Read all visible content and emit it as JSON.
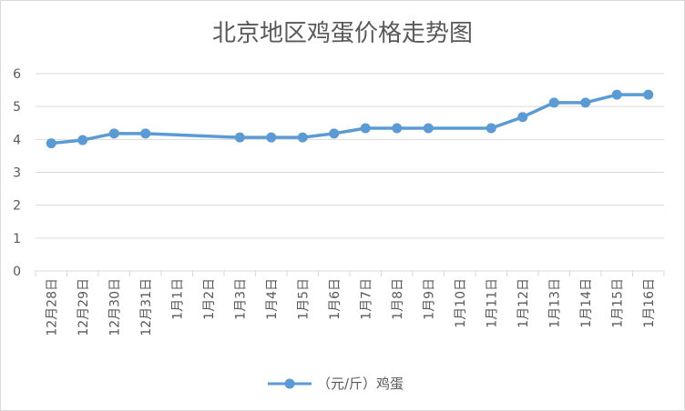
{
  "chart_data": {
    "type": "line",
    "title": "北京地区鸡蛋价格走势图",
    "categories": [
      "12月28日",
      "12月29日",
      "12月30日",
      "12月31日",
      "1月1日",
      "1月2日",
      "1月3日",
      "1月4日",
      "1月5日",
      "1月6日",
      "1月7日",
      "1月8日",
      "1月9日",
      "1月10日",
      "1月11日",
      "1月12日",
      "1月13日",
      "1月14日",
      "1月15日",
      "1月16日"
    ],
    "series": [
      {
        "name": "（元/斤）鸡蛋",
        "color": "#5b9bd5",
        "values": [
          3.88,
          3.98,
          4.18,
          4.18,
          null,
          null,
          4.06,
          4.06,
          4.06,
          4.18,
          4.34,
          4.34,
          4.34,
          null,
          4.34,
          4.68,
          5.12,
          5.12,
          5.36,
          5.36
        ]
      }
    ],
    "ylim": [
      0,
      6
    ],
    "yticks": [
      0,
      1,
      2,
      3,
      4,
      5,
      6
    ],
    "grid": true,
    "legend": "bottom"
  }
}
